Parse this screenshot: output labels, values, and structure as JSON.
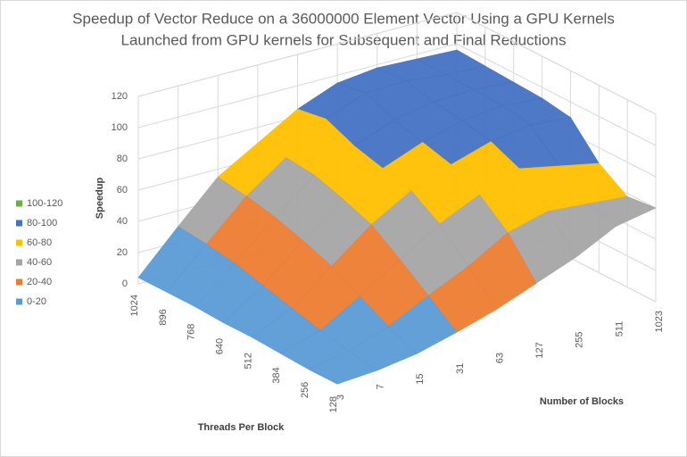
{
  "chart_data": {
    "type": "surface3d",
    "title": [
      "Speedup of Vector Reduce on a 36000000 Element Vector Using a GPU Kernels",
      "Launched from GPU kernels for Subsequent and Final Reductions"
    ],
    "z_label": "Speedup",
    "depth_label": "Threads Per Block",
    "x_label": "Number of Blocks",
    "categories": [
      "3",
      "7",
      "15",
      "31",
      "63",
      "127",
      "255",
      "511",
      "1023"
    ],
    "series": [
      {
        "name": "1024",
        "values": [
          4,
          30,
          55,
          70,
          85,
          95,
          98,
          97,
          96
        ]
      },
      {
        "name": "896",
        "values": [
          4,
          28,
          52,
          70,
          88,
          98,
          99,
          96,
          95
        ]
      },
      {
        "name": "768",
        "values": [
          4,
          25,
          48,
          68,
          80,
          90,
          95,
          96,
          94
        ]
      },
      {
        "name": "640",
        "values": [
          3,
          20,
          42,
          62,
          75,
          85,
          92,
          95,
          93
        ]
      },
      {
        "name": "512",
        "values": [
          3,
          15,
          35,
          55,
          70,
          80,
          88,
          92,
          90
        ]
      },
      {
        "name": "384",
        "values": [
          2,
          10,
          25,
          42,
          58,
          70,
          80,
          75,
          70
        ]
      },
      {
        "name": "256",
        "values": [
          1,
          6,
          15,
          28,
          40,
          55,
          62,
          60,
          58
        ]
      },
      {
        "name": "128",
        "values": [
          1,
          3,
          7,
          14,
          22,
          32,
          42,
          55,
          60
        ]
      }
    ],
    "zlim": [
      0,
      120
    ],
    "zticks": [
      0,
      20,
      40,
      60,
      80,
      100,
      120
    ],
    "bands": [
      {
        "name": "100-120",
        "range": [
          100,
          120
        ],
        "color": "#70ad47"
      },
      {
        "name": "80-100",
        "range": [
          80,
          100
        ],
        "color": "#4472c4"
      },
      {
        "name": "60-80",
        "range": [
          60,
          80
        ],
        "color": "#ffc000"
      },
      {
        "name": "40-60",
        "range": [
          40,
          60
        ],
        "color": "#a5a5a5"
      },
      {
        "name": "20-40",
        "range": [
          20,
          40
        ],
        "color": "#ed7d31"
      },
      {
        "name": "0-20",
        "range": [
          0,
          20
        ],
        "color": "#5b9bd5"
      }
    ],
    "grid": true
  }
}
